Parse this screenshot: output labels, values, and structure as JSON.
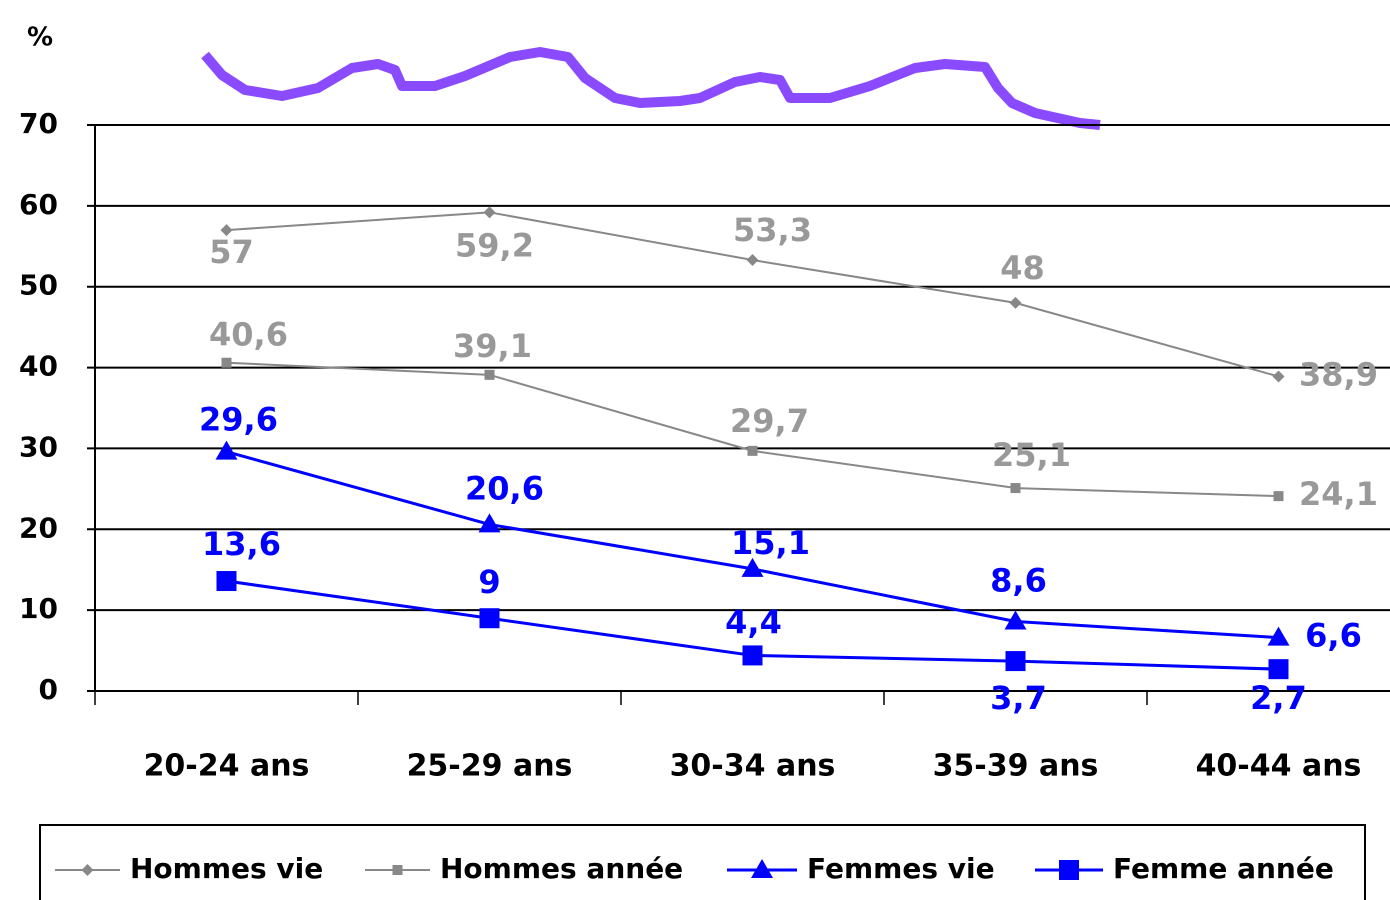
{
  "chart_data": {
    "type": "line",
    "y_label": "%",
    "categories": [
      "20-24 ans",
      "25-29 ans",
      "30-34 ans",
      "35-39 ans",
      "40-44 ans"
    ],
    "ylim": [
      0,
      70
    ],
    "yticks": [
      0,
      10,
      20,
      30,
      40,
      50,
      60,
      70
    ],
    "series": [
      {
        "name": "Hommes vie",
        "color": "#888888",
        "label_color": "#999999",
        "marker": "diamond",
        "values": [
          57,
          59.2,
          53.3,
          48,
          38.9
        ],
        "value_labels": [
          "57",
          "59,2",
          "53,3",
          "48",
          "38,9"
        ]
      },
      {
        "name": "Hommes année",
        "color": "#888888",
        "label_color": "#999999",
        "marker": "small-square",
        "values": [
          40.6,
          39.1,
          29.7,
          25.1,
          24.1
        ],
        "value_labels": [
          "40,6",
          "39,1",
          "29,7",
          "25,1",
          "24,1"
        ]
      },
      {
        "name": "Femmes vie",
        "color": "#0000ff",
        "label_color": "#0000ff",
        "marker": "triangle",
        "values": [
          29.6,
          20.6,
          15.1,
          8.6,
          6.6
        ],
        "value_labels": [
          "29,6",
          "20,6",
          "15,1",
          "8,6",
          "6,6"
        ]
      },
      {
        "name": "Femme année",
        "color": "#0000ff",
        "label_color": "#0000ff",
        "marker": "square",
        "values": [
          13.6,
          9,
          4.4,
          3.7,
          2.7
        ],
        "value_labels": [
          "13,6",
          "9",
          "4,4",
          "3,7",
          "2,7"
        ]
      }
    ]
  }
}
